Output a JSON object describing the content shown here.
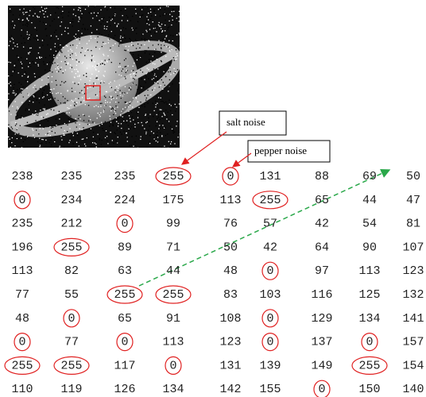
{
  "callouts": {
    "salt": "salt noise",
    "pepper": "pepper noise"
  },
  "matrix": {
    "rows": [
      [
        238,
        235,
        235,
        255,
        0,
        131,
        88,
        69,
        50
      ],
      [
        0,
        234,
        224,
        175,
        113,
        255,
        65,
        44,
        47
      ],
      [
        235,
        212,
        0,
        99,
        76,
        57,
        42,
        54,
        81
      ],
      [
        196,
        255,
        89,
        71,
        50,
        42,
        64,
        90,
        107
      ],
      [
        113,
        82,
        63,
        44,
        48,
        0,
        97,
        113,
        123
      ],
      [
        77,
        55,
        255,
        255,
        83,
        103,
        116,
        125,
        132
      ],
      [
        48,
        0,
        65,
        91,
        108,
        0,
        129,
        134,
        141
      ],
      [
        0,
        77,
        0,
        113,
        123,
        0,
        137,
        0,
        157
      ],
      [
        255,
        255,
        117,
        0,
        131,
        139,
        149,
        255,
        154
      ],
      [
        110,
        119,
        126,
        134,
        142,
        155,
        0,
        150,
        140
      ]
    ]
  }
}
